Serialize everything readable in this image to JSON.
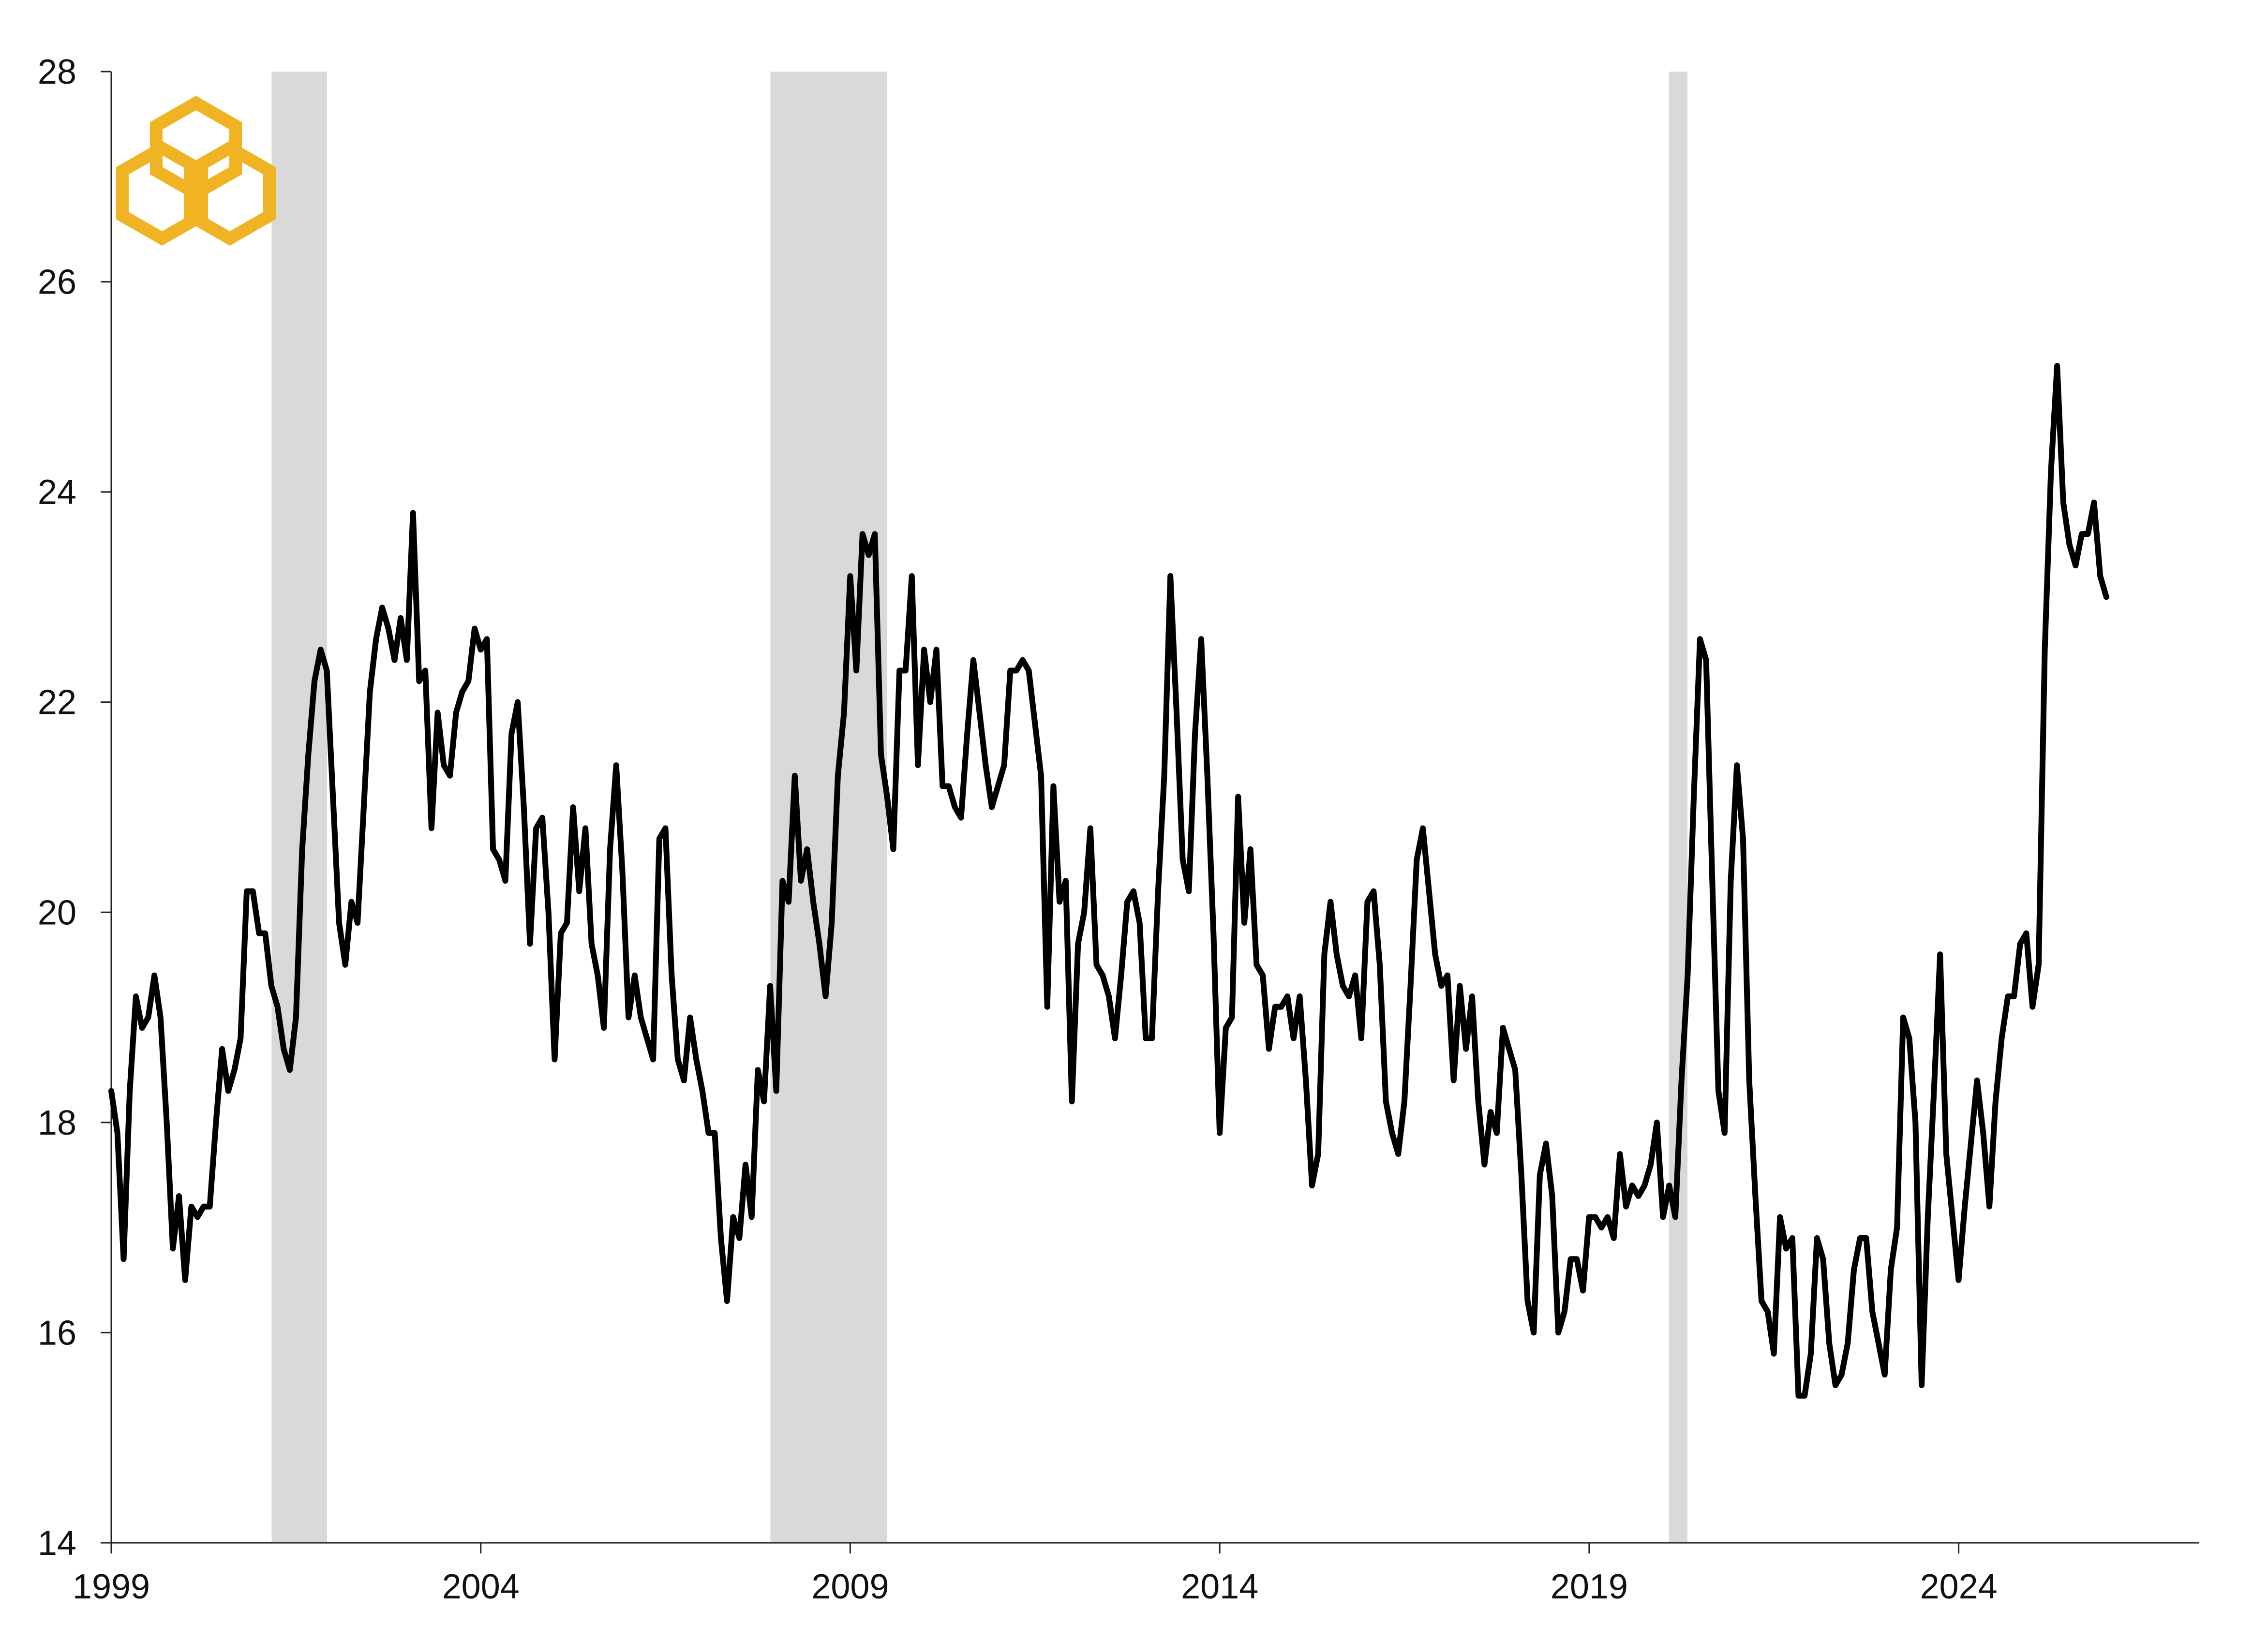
{
  "colors": {
    "line": "#000000",
    "recession_band": "#d9d9d9",
    "logo": "#f0b323",
    "axis": "#222222"
  },
  "logo": {
    "icon": "interlocking-hexagons-logo-icon"
  },
  "chart_data": {
    "type": "line",
    "title": "",
    "xlabel": "",
    "ylabel": "",
    "xlim": [
      1999.0,
      2027.25
    ],
    "ylim": [
      14,
      28
    ],
    "yticks": [
      14,
      16,
      18,
      20,
      22,
      24,
      26,
      28
    ],
    "xticks": [
      1999,
      2004,
      2009,
      2014,
      2019,
      2024
    ],
    "x_tick_labels": [
      "1999",
      "2004",
      "2009",
      "2014",
      "2019",
      "2024"
    ],
    "y_tick_labels": [
      "14",
      "16",
      "18",
      "20",
      "22",
      "24",
      "26",
      "28"
    ],
    "grid": false,
    "legend": "none",
    "recession_bands": [
      {
        "start": 2001.17,
        "end": 2001.92
      },
      {
        "start": 2007.92,
        "end": 2009.5
      },
      {
        "start": 2020.08,
        "end": 2020.33
      }
    ],
    "series": [
      {
        "x_start": 1999.0,
        "x_step": 0.08333,
        "values": [
          18.3,
          17.9,
          16.7,
          18.3,
          19.2,
          18.9,
          19.0,
          19.4,
          19.0,
          18.0,
          16.8,
          17.3,
          16.5,
          17.2,
          17.1,
          17.2,
          17.2,
          18.0,
          18.7,
          18.3,
          18.5,
          18.8,
          20.2,
          20.2,
          19.8,
          19.8,
          19.3,
          19.1,
          18.7,
          18.5,
          19.0,
          20.6,
          21.5,
          22.2,
          22.5,
          22.3,
          21.1,
          19.9,
          19.5,
          20.1,
          19.9,
          21.0,
          22.1,
          22.6,
          22.9,
          22.7,
          22.4,
          22.8,
          22.4,
          23.8,
          22.2,
          22.3,
          20.8,
          21.9,
          21.4,
          21.3,
          21.9,
          22.1,
          22.2,
          22.7,
          22.5,
          22.6,
          20.6,
          20.5,
          20.3,
          21.7,
          22.0,
          21.0,
          19.7,
          20.8,
          20.9,
          20.0,
          18.6,
          19.8,
          19.9,
          21.0,
          20.2,
          20.8,
          19.7,
          19.4,
          18.9,
          20.6,
          21.4,
          20.4,
          19.0,
          19.4,
          19.0,
          18.8,
          18.6,
          20.7,
          20.8,
          19.4,
          18.6,
          18.4,
          19.0,
          18.6,
          18.3,
          17.9,
          17.9,
          16.9,
          16.3,
          17.1,
          16.9,
          17.6,
          17.1,
          18.5,
          18.2,
          19.3,
          18.3,
          20.3,
          20.1,
          21.3,
          20.3,
          20.6,
          20.1,
          19.7,
          19.2,
          19.9,
          21.3,
          21.9,
          23.2,
          22.3,
          23.6,
          23.4,
          23.6,
          21.5,
          21.1,
          20.6,
          22.3,
          22.3,
          23.2,
          21.4,
          22.5,
          22.0,
          22.5,
          21.2,
          21.2,
          21.0,
          20.9,
          21.7,
          22.4,
          21.9,
          21.4,
          21.0,
          21.2,
          21.4,
          22.3,
          22.3,
          22.4,
          22.3,
          21.8,
          21.3,
          19.1,
          21.2,
          20.1,
          20.3,
          18.2,
          19.7,
          20.0,
          20.8,
          19.5,
          19.4,
          19.2,
          18.8,
          19.4,
          20.1,
          20.2,
          19.9,
          18.8,
          18.8,
          20.2,
          21.3,
          23.2,
          21.9,
          20.5,
          20.2,
          21.7,
          22.6,
          21.3,
          19.8,
          17.9,
          18.9,
          19.0,
          21.1,
          19.9,
          20.6,
          19.5,
          19.4,
          18.7,
          19.1,
          19.1,
          19.2,
          18.8,
          19.2,
          18.4,
          17.4,
          17.7,
          19.6,
          20.1,
          19.6,
          19.3,
          19.2,
          19.4,
          18.8,
          20.1,
          20.2,
          19.5,
          18.2,
          17.9,
          17.7,
          18.2,
          19.3,
          20.5,
          20.8,
          20.2,
          19.6,
          19.3,
          19.4,
          18.4,
          19.3,
          18.7,
          19.2,
          18.2,
          17.6,
          18.1,
          17.9,
          18.9,
          18.7,
          18.5,
          17.5,
          16.3,
          16.0,
          17.5,
          17.8,
          17.3,
          16.0,
          16.2,
          16.7,
          16.7,
          16.4,
          17.1,
          17.1,
          17.0,
          17.1,
          16.9,
          17.7,
          17.2,
          17.4,
          17.3,
          17.4,
          17.6,
          18.0,
          17.1,
          17.4,
          17.1,
          18.4,
          19.4,
          21.1,
          22.6,
          22.4,
          20.3,
          18.3,
          17.9,
          20.3,
          21.4,
          20.7,
          18.4,
          17.3,
          16.3,
          16.2,
          15.8,
          17.1,
          16.8,
          16.9,
          15.4,
          15.4,
          15.8,
          16.9,
          16.7,
          15.9,
          15.5,
          15.6,
          15.9,
          16.6,
          16.9,
          16.9,
          16.2,
          15.9,
          15.6,
          16.6,
          17.0,
          19.0,
          18.8,
          18.0,
          15.5,
          17.1,
          18.3,
          19.6,
          17.7,
          17.1,
          16.5,
          17.2,
          17.8,
          18.4,
          17.9,
          17.2,
          18.2,
          18.8,
          19.2,
          19.2,
          19.7,
          19.8,
          19.1,
          19.5,
          22.5,
          24.2,
          25.2,
          23.9,
          23.5,
          23.3,
          23.6,
          23.6,
          23.9,
          23.2,
          23.0
        ]
      }
    ]
  }
}
